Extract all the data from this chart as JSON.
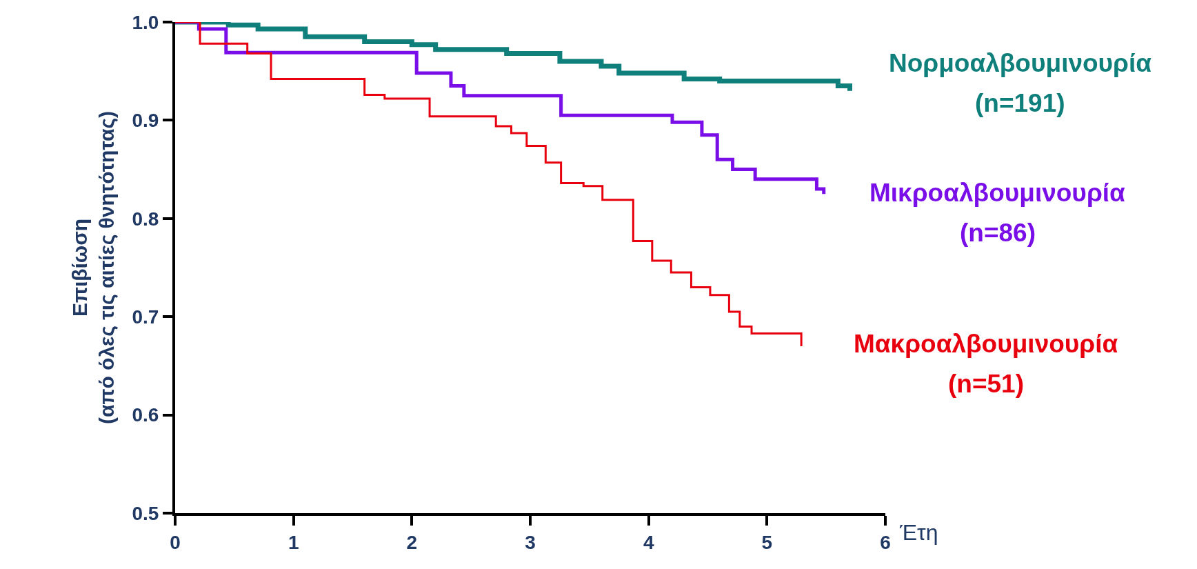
{
  "chart_data": {
    "type": "step",
    "xlabel": "Έτη",
    "ylabel": "Επιβίωση\n(από όλες τις αιτίες θνητότητας)",
    "xlim": [
      0,
      6
    ],
    "xticks": [
      0,
      1,
      2,
      3,
      4,
      5,
      6
    ],
    "ylim": [
      0.5,
      1.0
    ],
    "yticks": [
      0.5,
      0.6,
      0.7,
      0.8,
      0.9,
      {
        "value": 1,
        "label": "1.0"
      }
    ],
    "grid": false,
    "legend": false,
    "marker": "none",
    "line_style": "solid",
    "series": [
      {
        "name": "Νορμοαλβουμινουρία",
        "color": "#0e7f7a",
        "x": [
          0,
          0.45,
          0.7,
          1.1,
          1.6,
          2.0,
          2.2,
          2.8,
          3.25,
          3.6,
          3.75,
          4.3,
          4.6,
          5.6,
          5.7
        ],
        "values": [
          1.0,
          0.997,
          0.993,
          0.985,
          0.98,
          0.977,
          0.972,
          0.968,
          0.96,
          0.955,
          0.948,
          0.942,
          0.94,
          0.935,
          0.93
        ]
      },
      {
        "name": "Μικροαλβουμινουρία",
        "color": "#7a0ee8",
        "x": [
          0,
          0.2,
          0.43,
          2.04,
          2.33,
          2.44,
          3.26,
          4.2,
          4.45,
          4.58,
          4.71,
          4.9,
          5.42,
          5.48
        ],
        "values": [
          1.0,
          0.993,
          0.969,
          0.948,
          0.935,
          0.925,
          0.905,
          0.898,
          0.885,
          0.86,
          0.85,
          0.84,
          0.83,
          0.825
        ]
      },
      {
        "name": "Μακροαλβουμινουρία",
        "color": "#e8000f",
        "x": [
          0,
          0.21,
          0.61,
          0.81,
          1.6,
          1.77,
          2.15,
          2.71,
          2.84,
          2.97,
          3.13,
          3.26,
          3.45,
          3.61,
          3.87,
          4.03,
          4.19,
          4.36,
          4.52,
          4.68,
          4.77,
          4.87,
          5.29
        ],
        "values": [
          1.0,
          0.978,
          0.968,
          0.942,
          0.926,
          0.922,
          0.904,
          0.894,
          0.887,
          0.874,
          0.857,
          0.836,
          0.833,
          0.819,
          0.777,
          0.757,
          0.745,
          0.73,
          0.722,
          0.705,
          0.69,
          0.683,
          0.67
        ]
      }
    ],
    "annotations": [
      "(n=191)",
      "(n=86)",
      "(n=51)"
    ]
  }
}
